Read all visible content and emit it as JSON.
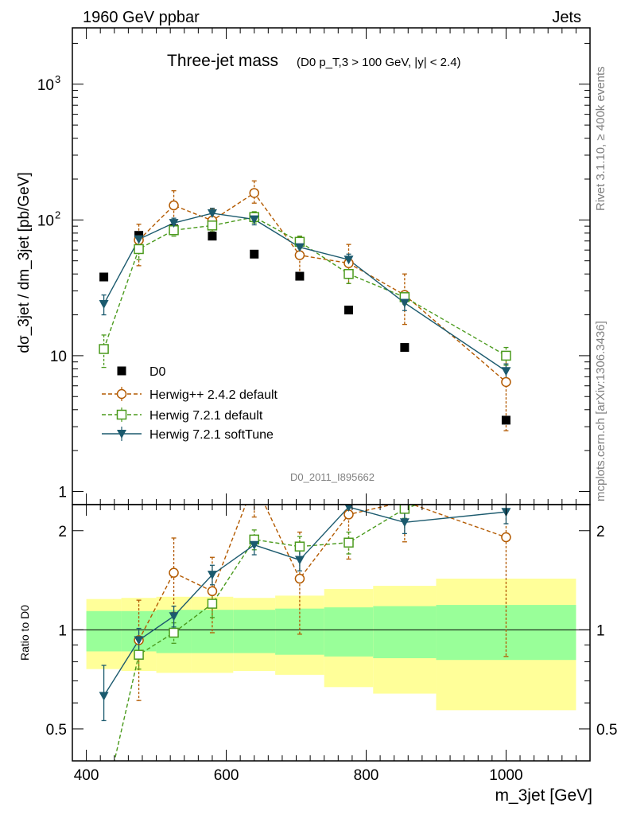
{
  "header": {
    "left": "1960 GeV ppbar",
    "right": "Jets"
  },
  "side_labels": {
    "rivet": "Rivet 3.1.10, ≥ 400k events",
    "mcplots": "mcplots.cern.ch [arXiv:1306.3436]"
  },
  "chart_data": {
    "type": "line",
    "title": "Three-jet mass",
    "title_cut": "(D0 p_T,3 > 100 GeV, |y| < 2.4)",
    "analysis_id": "D0_2011_I895662",
    "xlabel": "m_3jet [GeV]",
    "ylabel": "dσ_3jet / dm_3jet [pb/GeV]",
    "ratio_ylabel": "Ratio to D0",
    "xlim": [
      380,
      1120
    ],
    "ylim": [
      0.8,
      2600
    ],
    "yscale": "log",
    "ratio_ylim": [
      0.4,
      2.4
    ],
    "x_ticks": [
      "400",
      "600",
      "800",
      "1000"
    ],
    "y_ticks": [
      "1",
      "10",
      "10^2",
      "10^3"
    ],
    "ratio_ticks": [
      "0.5",
      "1",
      "2"
    ],
    "bins": [
      [
        400,
        450
      ],
      [
        450,
        500
      ],
      [
        500,
        550
      ],
      [
        550,
        610
      ],
      [
        610,
        670
      ],
      [
        670,
        740
      ],
      [
        740,
        810
      ],
      [
        810,
        900
      ],
      [
        900,
        1100
      ]
    ],
    "bin_centers": [
      425,
      475,
      525,
      580,
      640,
      705,
      775,
      855,
      1000
    ],
    "series": [
      {
        "name": "D0",
        "style": "data",
        "color": "#000000",
        "values": [
          38,
          77,
          86,
          76,
          56,
          38.5,
          21.7,
          11.5,
          3.35
        ],
        "band_inner": [
          0.14,
          0.14,
          0.15,
          0.15,
          0.15,
          0.16,
          0.17,
          0.18,
          0.19
        ],
        "band_outer": [
          0.24,
          0.25,
          0.26,
          0.26,
          0.25,
          0.27,
          0.33,
          0.36,
          0.43
        ]
      },
      {
        "name": "Herwig++ 2.4.2 default",
        "style": "dashed-circle",
        "color": "#b35a00",
        "values": [
          null,
          71,
          128,
          99,
          158,
          55,
          48,
          28,
          6.4
        ],
        "err_lo": [
          null,
          25,
          28,
          18,
          25,
          16,
          14,
          11,
          3.6
        ],
        "err_hi": [
          null,
          22,
          36,
          22,
          36,
          20,
          18,
          12,
          3.3
        ],
        "ratio": [
          null,
          0.93,
          1.49,
          1.31,
          2.8,
          1.43,
          2.24,
          2.45,
          1.91
        ],
        "ratio_lo": [
          null,
          0.32,
          0.36,
          0.33,
          0.6,
          0.46,
          0.6,
          0.6,
          1.08
        ],
        "ratio_hi": [
          null,
          0.3,
          0.41,
          0.35,
          0.6,
          0.55,
          0.6,
          0.6,
          0.4
        ]
      },
      {
        "name": "Herwig 7.2.1 default",
        "style": "dashed-square",
        "color": "#4a9a1c",
        "values": [
          11.2,
          61,
          84,
          91,
          105,
          69,
          40,
          27,
          10
        ],
        "err_lo": [
          3,
          10,
          8,
          9,
          10,
          7,
          6,
          3,
          1.5
        ],
        "err_hi": [
          3,
          10,
          8,
          9,
          10,
          7,
          6,
          3,
          1.5
        ],
        "ratio": [
          0.29,
          0.84,
          0.98,
          1.2,
          1.88,
          1.79,
          1.84,
          2.33,
          2.98
        ],
        "ratio_lo": [
          0.05,
          0.08,
          0.07,
          0.11,
          0.13,
          0.13,
          0.14,
          0.15,
          0.2
        ],
        "ratio_hi": [
          0.05,
          0.08,
          0.07,
          0.11,
          0.13,
          0.13,
          0.14,
          0.15,
          0.2
        ]
      },
      {
        "name": "Herwig 7.2.1 softTune",
        "style": "solid-triangle",
        "color": "#1b5a6e",
        "values": [
          24,
          72,
          95,
          112,
          101,
          63,
          51,
          24.5,
          7.7
        ],
        "err_lo": [
          4,
          8,
          8,
          10,
          9,
          6,
          5,
          3,
          1
        ],
        "err_hi": [
          4,
          8,
          8,
          10,
          9,
          6,
          5,
          3,
          1
        ],
        "ratio": [
          0.63,
          0.93,
          1.1,
          1.47,
          1.81,
          1.63,
          2.36,
          2.12,
          2.28
        ],
        "ratio_lo": [
          0.1,
          0.08,
          0.08,
          0.1,
          0.12,
          0.12,
          0.14,
          0.16,
          0.18
        ],
        "ratio_hi": [
          0.15,
          0.08,
          0.08,
          0.1,
          0.12,
          0.12,
          0.14,
          0.16,
          0.18
        ]
      }
    ]
  }
}
